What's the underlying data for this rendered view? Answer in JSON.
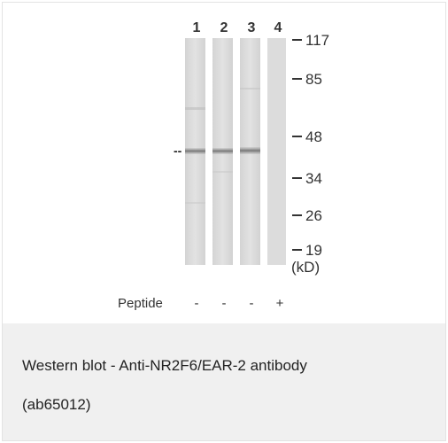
{
  "blot": {
    "lanes": [
      {
        "number": "1",
        "peptide": "-"
      },
      {
        "number": "2",
        "peptide": "-"
      },
      {
        "number": "3",
        "peptide": "-"
      },
      {
        "number": "4",
        "peptide": "+"
      }
    ],
    "markers": [
      "117",
      "85",
      "48",
      "34",
      "26",
      "19"
    ],
    "unit": "(kD)",
    "peptide_label": "Peptide",
    "band_arrow": "--"
  },
  "caption": {
    "line1": "Western blot - Anti-NR2F6/EAR-2 antibody",
    "line2": "(ab65012)"
  }
}
